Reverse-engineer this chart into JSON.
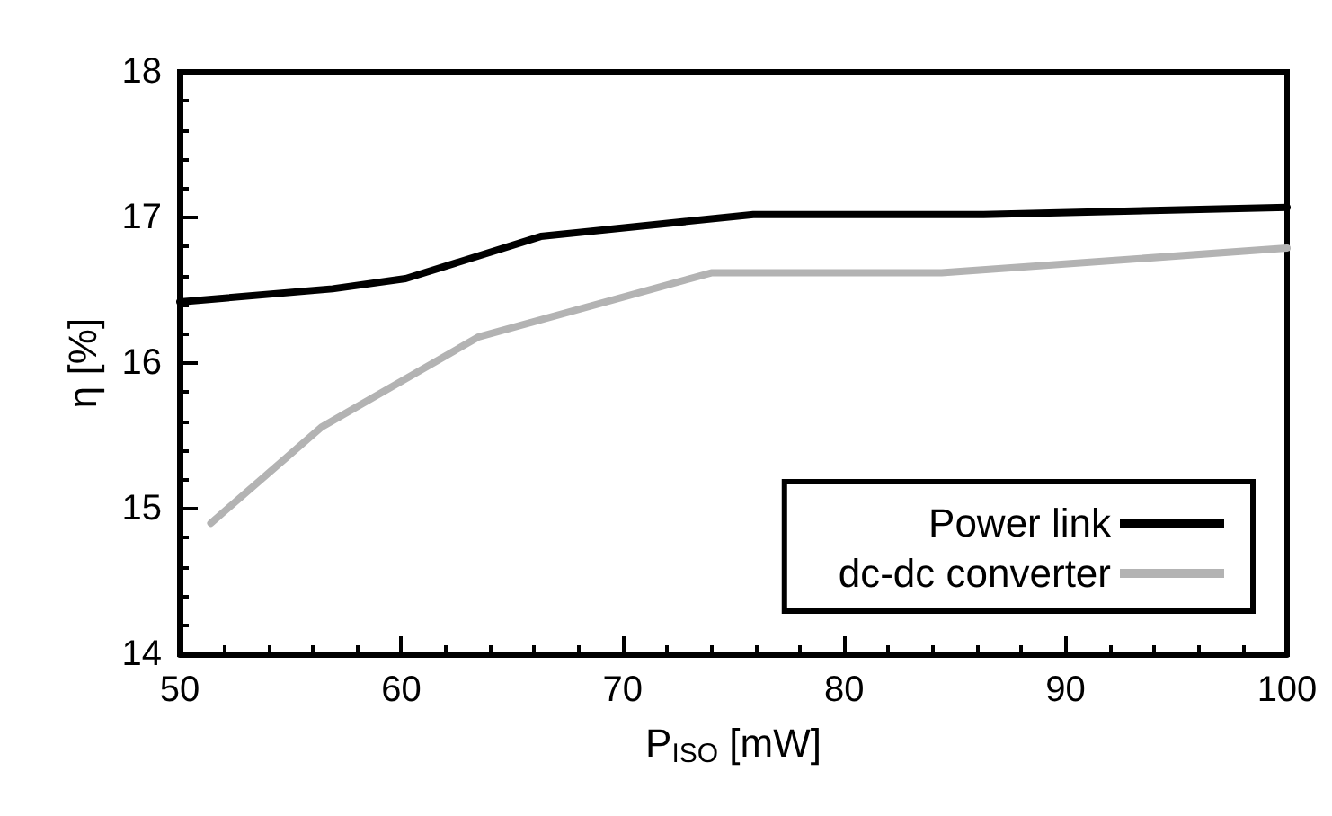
{
  "chart_data": {
    "type": "line",
    "xlabel": "P$_{ISO}$ [mW]",
    "ylabel": "η [%]",
    "xlim": [
      50,
      100
    ],
    "xticks": [
      50,
      60,
      70,
      80,
      90,
      100
    ],
    "ylim": [
      14,
      18
    ],
    "yticks": [
      14,
      15,
      16,
      17,
      18
    ],
    "grid": false,
    "legend": "bottom right",
    "marker": "none",
    "line_style": "solid",
    "series": [
      {
        "name": "Power link",
        "color": "#000000",
        "x": [
          50,
          56.9,
          60.2,
          66.3,
          75.9,
          86.3,
          100
        ],
        "values": [
          16.42,
          16.51,
          16.58,
          16.87,
          17.02,
          17.02,
          17.07
        ]
      },
      {
        "name": "dc-dc converter",
        "color": "#b3b3b3",
        "x": [
          51.4,
          56.4,
          63.5,
          74.0,
          84.4,
          100
        ],
        "values": [
          14.9,
          15.56,
          16.18,
          16.62,
          16.62,
          16.79
        ]
      }
    ]
  }
}
